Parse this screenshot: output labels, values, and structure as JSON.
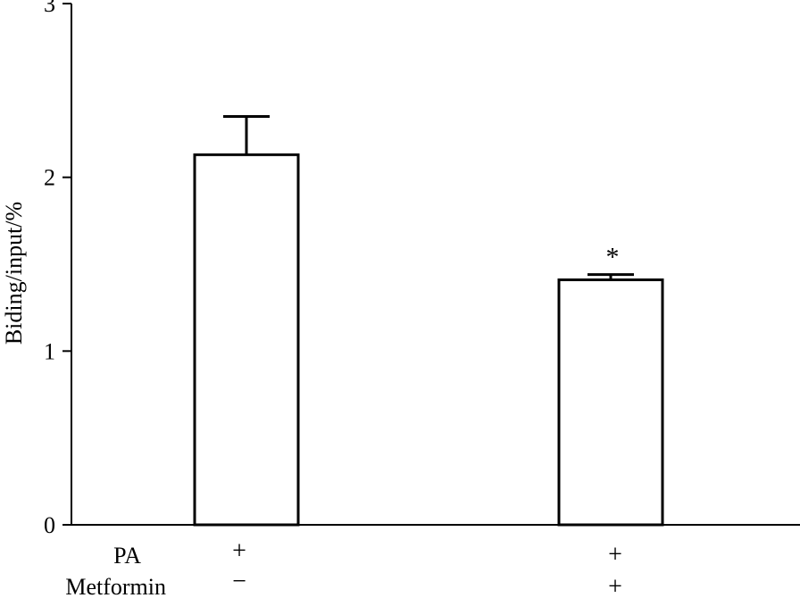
{
  "chart_data": {
    "type": "bar",
    "title": "",
    "xlabel": "",
    "ylabel": "Biding/input/%",
    "ylim": [
      0,
      3
    ],
    "yticks": [
      "0",
      "1",
      "2",
      "3"
    ],
    "grid": false,
    "legend": "none",
    "categories": [
      "PA+ / Metformin−",
      "PA+ / Metformin+"
    ],
    "values": [
      2.13,
      1.41
    ],
    "error": [
      0.22,
      0.03
    ],
    "significance": [
      "",
      "*"
    ],
    "condition_rows": [
      {
        "label": "PA",
        "signs": [
          "+",
          "+"
        ]
      },
      {
        "label": "Metformin",
        "signs": [
          "−",
          "+"
        ]
      }
    ],
    "colors": {
      "bar_fill": "#ffffff",
      "stroke": "#000000"
    }
  }
}
